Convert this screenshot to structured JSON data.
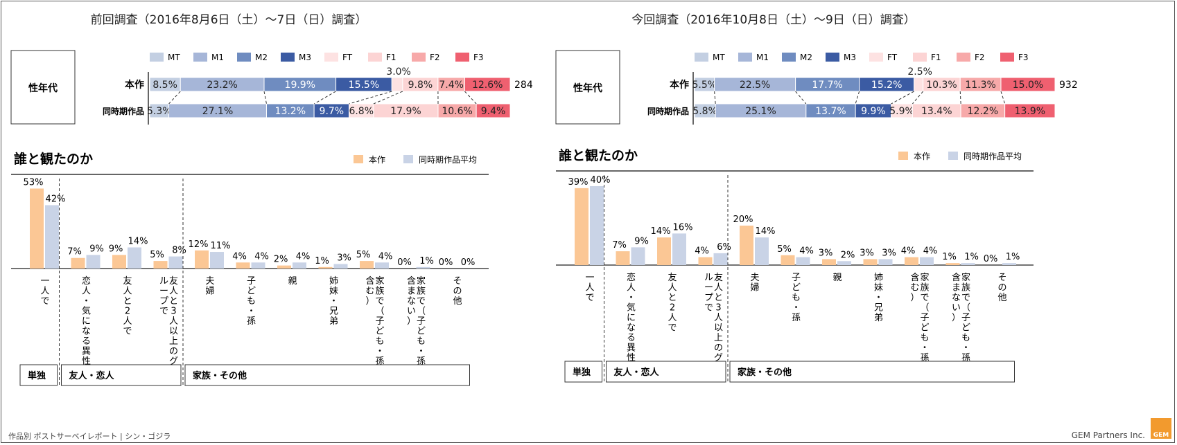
{
  "footer": {
    "left": "作品別 ポストサーベイレポート | シン・ゴジラ",
    "right": "GEM Partners Inc.",
    "logo": "GEM"
  },
  "colors": {
    "MT": "#c3cfe2",
    "M1": "#a6b6d8",
    "M2": "#6f8cc0",
    "M3": "#3b5ba3",
    "FT": "#fde2e2",
    "F1": "#fcd4d4",
    "F2": "#f7a9a9",
    "F3": "#ef6070",
    "honsaku": "#fbc795",
    "average": "#c9d3e6"
  },
  "chart_data": [
    {
      "type": "bar",
      "stacked": true,
      "orientation": "horizontal",
      "title": "前回調査（2016年8月6日（土）～7日（日）調査）",
      "box_label": "性年代",
      "legend": [
        "MT",
        "M1",
        "M2",
        "M3",
        "FT",
        "F1",
        "F2",
        "F3"
      ],
      "rows": [
        {
          "label": "本作",
          "values": [
            8.5,
            23.2,
            19.9,
            15.5,
            3.0,
            9.8,
            7.4,
            12.6
          ],
          "labels": [
            "8.5%",
            "23.2%",
            "19.9%",
            "15.5%",
            "3.0%",
            "9.8%",
            "7.4%",
            "12.6%"
          ],
          "n": "284"
        },
        {
          "label": "同時期作品",
          "values": [
            5.3,
            27.1,
            13.2,
            9.7,
            6.8,
            17.9,
            10.6,
            9.4
          ],
          "labels": [
            "5.3%",
            "27.1%",
            "13.2%",
            "9.7%",
            "6.8%",
            "17.9%",
            "10.6%",
            "9.4%"
          ],
          "n": ""
        }
      ]
    },
    {
      "type": "bar",
      "stacked": true,
      "orientation": "horizontal",
      "title": "今回調査（2016年10月8日（土）～9日（日）調査）",
      "box_label": "性年代",
      "legend": [
        "MT",
        "M1",
        "M2",
        "M3",
        "FT",
        "F1",
        "F2",
        "F3"
      ],
      "rows": [
        {
          "label": "本作",
          "values": [
            5.5,
            22.5,
            17.7,
            15.2,
            2.5,
            10.3,
            11.3,
            15.0
          ],
          "labels": [
            "5.5%",
            "22.5%",
            "17.7%",
            "15.2%",
            "2.5%",
            "10.3%",
            "11.3%",
            "15.0%"
          ],
          "n": "932"
        },
        {
          "label": "同時期作品",
          "values": [
            5.8,
            25.1,
            13.7,
            9.9,
            5.9,
            13.4,
            12.2,
            13.9
          ],
          "labels": [
            "5.8%",
            "25.1%",
            "13.7%",
            "9.9%",
            "5.9%",
            "13.4%",
            "12.2%",
            "13.9%"
          ],
          "n": ""
        }
      ]
    },
    {
      "type": "bar",
      "title": "誰と観たのか",
      "legend": [
        "本作",
        "同時期作品平均"
      ],
      "categories": [
        "一人で",
        "恋人・気になる異性",
        "友人と2人で",
        "友人と3人以上のグループで",
        "夫婦",
        "子ども・孫",
        "親",
        "姉妹・兄弟",
        "家族で（子ども・孫含む）",
        "家族で（子ども・孫含まない）",
        "その他"
      ],
      "series": [
        {
          "name": "本作",
          "values": [
            53,
            7,
            9,
            5,
            12,
            4,
            2,
            1,
            5,
            0,
            0
          ]
        },
        {
          "name": "同時期作品平均",
          "values": [
            42,
            9,
            14,
            8,
            11,
            4,
            4,
            3,
            4,
            1,
            0
          ]
        }
      ],
      "groups": [
        {
          "label": "単独",
          "count": 1
        },
        {
          "label": "友人・恋人",
          "count": 3
        },
        {
          "label": "家族・その他",
          "count": 7
        }
      ]
    },
    {
      "type": "bar",
      "title": "誰と観たのか",
      "legend": [
        "本作",
        "同時期作品平均"
      ],
      "categories": [
        "一人で",
        "恋人・気になる異性",
        "友人と2人で",
        "友人と3人以上のグループで",
        "夫婦",
        "子ども・孫",
        "親",
        "姉妹・兄弟",
        "家族で（子ども・孫含む）",
        "家族で（子ども・孫含まない）",
        "その他"
      ],
      "series": [
        {
          "name": "本作",
          "values": [
            39,
            7,
            14,
            4,
            20,
            5,
            3,
            3,
            4,
            1,
            0
          ]
        },
        {
          "name": "同時期作品平均",
          "values": [
            40,
            9,
            16,
            6,
            14,
            4,
            2,
            3,
            4,
            1,
            1
          ]
        }
      ],
      "groups": [
        {
          "label": "単独",
          "count": 1
        },
        {
          "label": "友人・恋人",
          "count": 3
        },
        {
          "label": "家族・その他",
          "count": 7
        }
      ]
    }
  ]
}
